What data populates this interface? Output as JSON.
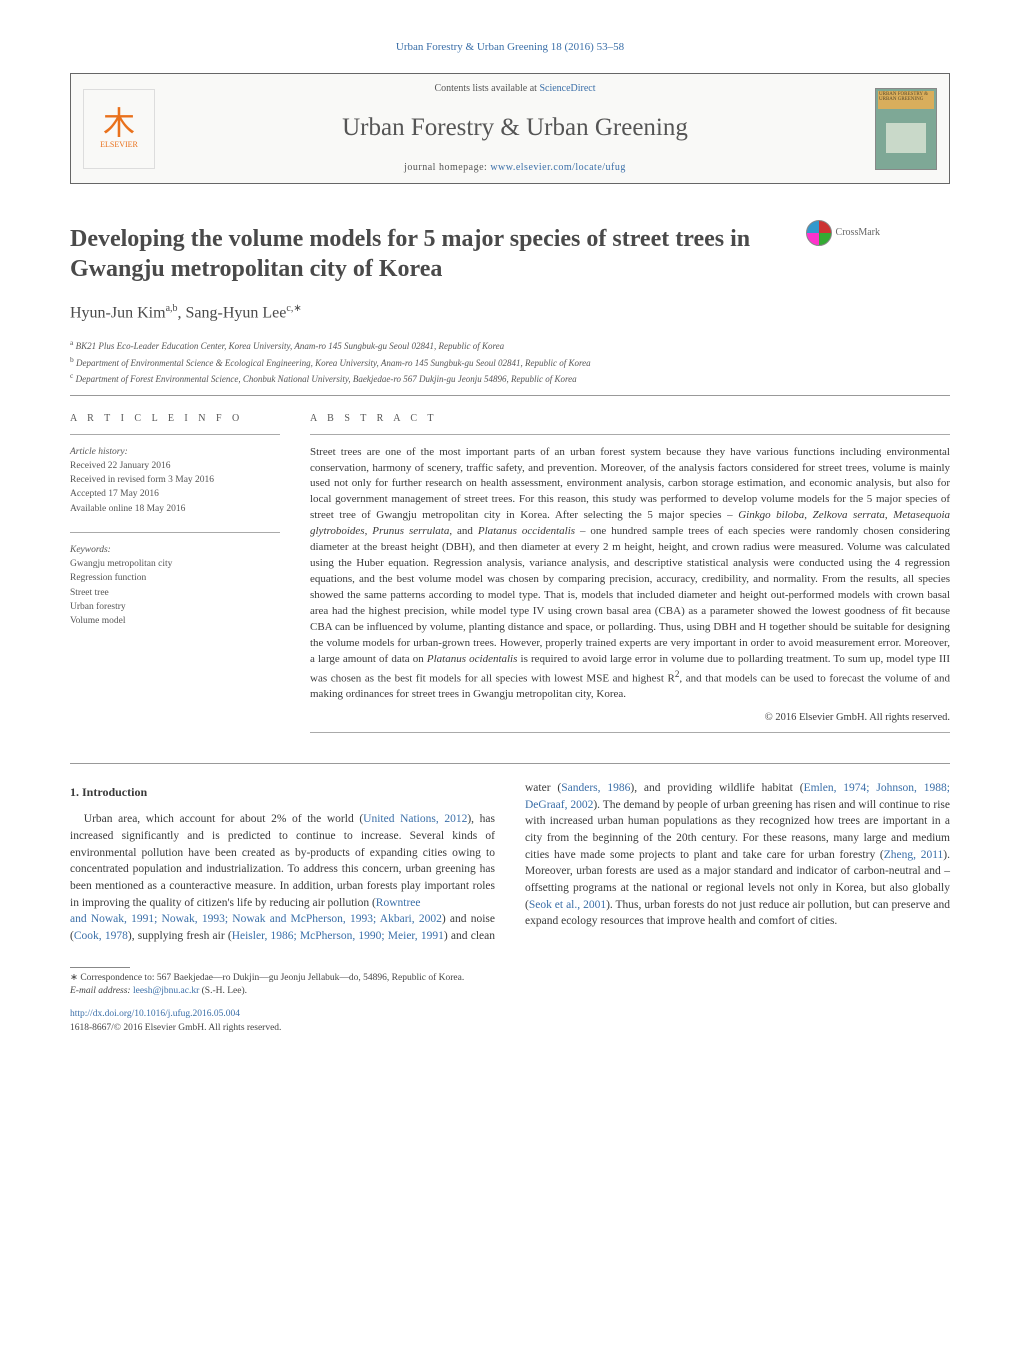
{
  "journal_ref": "Urban Forestry & Urban Greening 18 (2016) 53–58",
  "masthead": {
    "elsevier": "ELSEVIER",
    "contents_prefix": "Contents lists available at ",
    "contents_link": "ScienceDirect",
    "journal_title": "Urban Forestry & Urban Greening",
    "homepage_prefix": "journal homepage: ",
    "homepage_url": "www.elsevier.com/locate/ufug",
    "cover_label": "URBAN FORESTRY & URBAN GREENING"
  },
  "crossmark": "CrossMark",
  "title": "Developing the volume models for 5 major species of street trees in Gwangju metropolitan city of Korea",
  "authors_html": "Hyun-Jun Kim<sup>a,b</sup>, Sang-Hyun Lee<sup>c,∗</sup>",
  "affiliations": [
    "a BK21 Plus Eco-Leader Education Center, Korea University, Anam-ro 145 Sungbuk-gu Seoul 02841, Republic of Korea",
    "b Department of Environmental Science & Ecological Engineering, Korea University, Anam-ro 145 Sungbuk-gu Seoul 02841, Republic of Korea",
    "c Department of Forest Environmental Science, Chonbuk National University, Baekjedae-ro 567 Dukjin-gu Jeonju 54896, Republic of Korea"
  ],
  "article_info": {
    "heading": "a r t i c l e   i n f o",
    "history_label": "Article history:",
    "history": [
      "Received 22 January 2016",
      "Received in revised form 3 May 2016",
      "Accepted 17 May 2016",
      "Available online 18 May 2016"
    ],
    "keywords_label": "Keywords:",
    "keywords": [
      "Gwangju metropolitan city",
      "Regression function",
      "Street tree",
      "Urban forestry",
      "Volume model"
    ]
  },
  "abstract": {
    "heading": "a b s t r a c t",
    "text_html": "Street trees are one of the most important parts of an urban forest system because they have various functions including environmental conservation, harmony of scenery, traffic safety, and prevention. Moreover, of the analysis factors considered for street trees, volume is mainly used not only for further research on health assessment, environment analysis, carbon storage estimation, and economic analysis, but also for local government management of street trees. For this reason, this study was performed to develop volume models for the 5 major species of street tree of Gwangju metropolitan city in Korea. After selecting the 5 major species – <em>Ginkgo biloba</em>, <em>Zelkova serrata</em>, <em>Metasequoia glytroboides</em>, <em>Prunus serrulata</em>, and <em>Platanus occidentalis</em> – one hundred sample trees of each species were randomly chosen considering diameter at the breast height (DBH), and then diameter at every 2 m height, height, and crown radius were measured. Volume was calculated using the Huber equation. Regression analysis, variance analysis, and descriptive statistical analysis were conducted using the 4 regression equations, and the best volume model was chosen by comparing precision, accuracy, credibility, and normality. From the results, all species showed the same patterns according to model type. That is, models that included diameter and height out-performed models with crown basal area had the highest precision, while model type IV using crown basal area (CBA) as a parameter showed the lowest goodness of fit because CBA can be influenced by volume, planting distance and space, or pollarding. Thus, using DBH and H together should be suitable for designing the volume models for urban-grown trees. However, properly trained experts are very important in order to avoid measurement error. Moreover, a large amount of data on <em>Platanus ocidentalis</em> is required to avoid large error in volume due to pollarding treatment. To sum up, model type III was chosen as the best fit models for all species with lowest MSE and highest R<sup>2</sup>, and that models can be used to forecast the volume of and making ordinances for street trees in Gwangju metropolitan city, Korea.",
    "copyright": "© 2016 Elsevier GmbH. All rights reserved."
  },
  "body": {
    "section1_heading": "1.  Introduction",
    "para1_html": "Urban area, which account for about 2% of the world (<a>United Nations, 2012</a>), has increased significantly and is predicted to continue to increase. Several kinds of environmental pollution have been created as by-products of expanding cities owing to concentrated population and industrialization. To address this concern, urban greening has been mentioned as a counteractive measure. In addition, urban forests play important roles in improving the quality of citizen's life by reducing air pollution (<a>Rowntree</a>",
    "para1_cont_html": "<a>and Nowak, 1991; Nowak, 1993; Nowak and McPherson, 1993; Akbari, 2002</a>) and noise (<a>Cook, 1978</a>), supplying fresh air (<a>Heisler, 1986; McPherson, 1990; Meier, 1991</a>) and clean water (<a>Sanders, 1986</a>), and providing wildlife habitat (<a>Emlen, 1974; Johnson, 1988; DeGraaf, 2002</a>). The demand by people of urban greening has risen and will continue to rise with increased urban human populations as they recognized how trees are important in a city from the beginning of the 20th century. For these reasons, many large and medium cities have made some projects to plant and take care for urban forestry (<a>Zheng, 2011</a>). Moreover, urban forests are used as a major standard and indicator of carbon-neutral and –offsetting programs at the national or regional levels not only in Korea, but also globally (<a>Seok et al., 2001</a>). Thus, urban forests do not just reduce air pollution, but can preserve and expand ecology resources that improve health and comfort of cities."
  },
  "footnotes": {
    "corr": "∗ Correspondence to: 567 Baekjedae—ro Dukjin—gu Jeonju Jellabuk—do, 54896, Republic of Korea.",
    "email_label": "E-mail address:",
    "email": "leesh@jbnu.ac.kr",
    "email_who": "(S.-H. Lee)."
  },
  "footer": {
    "doi": "http://dx.doi.org/10.1016/j.ufug.2016.05.004",
    "issn_line": "1618-8667/© 2016 Elsevier GmbH. All rights reserved."
  },
  "colors": {
    "link": "#3b6fa8",
    "text": "#3a3a3a",
    "orange": "#e9711c",
    "cover_green": "#7ea896"
  }
}
